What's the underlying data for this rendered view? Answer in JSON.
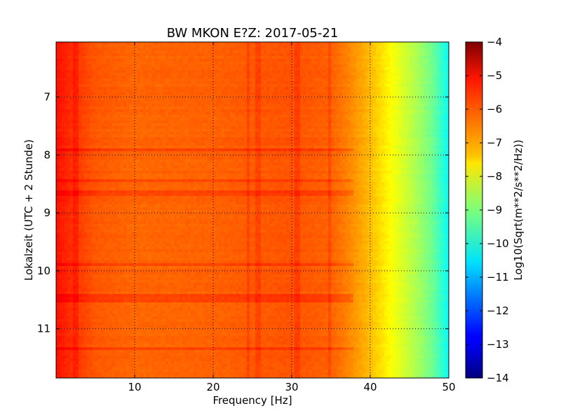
{
  "chart_data": {
    "type": "heatmap",
    "title": "BW MKON E?Z: 2017-05-21",
    "xlabel": "Frequency [Hz]",
    "ylabel": "Lokalzeit (UTC + 2 Stunde)",
    "xlim": [
      0,
      50
    ],
    "ylim": [
      6.05,
      11.85
    ],
    "y_inverted": true,
    "x_ticks": [
      10,
      20,
      30,
      40,
      50
    ],
    "y_ticks": [
      7,
      8,
      9,
      10,
      11
    ],
    "grid": true,
    "colormap": "jet",
    "colorbar": {
      "label": "Log10(Sqrt(m**2/s**2/Hz))",
      "min": -14,
      "max": -4,
      "ticks": [
        -4,
        -5,
        -6,
        -7,
        -8,
        -9,
        -10,
        -11,
        -12,
        -13,
        -14
      ]
    },
    "spectrum_profile": {
      "frequency": [
        0,
        2,
        5,
        10,
        20,
        30,
        35,
        37,
        39,
        40,
        42,
        44,
        46,
        48,
        50
      ],
      "value": [
        -5.4,
        -5.7,
        -6.1,
        -6.25,
        -6.2,
        -6.05,
        -6.2,
        -6.5,
        -6.9,
        -7.1,
        -7.6,
        -8.1,
        -8.6,
        -9.2,
        -10.2
      ]
    },
    "tonal_lines_hz": [
      2.6,
      24.5,
      25.8,
      30.7,
      34.8
    ],
    "strong_time_bands": [
      7.9,
      8.45,
      8.65,
      9.9,
      10.45,
      10.52,
      11.35
    ]
  }
}
